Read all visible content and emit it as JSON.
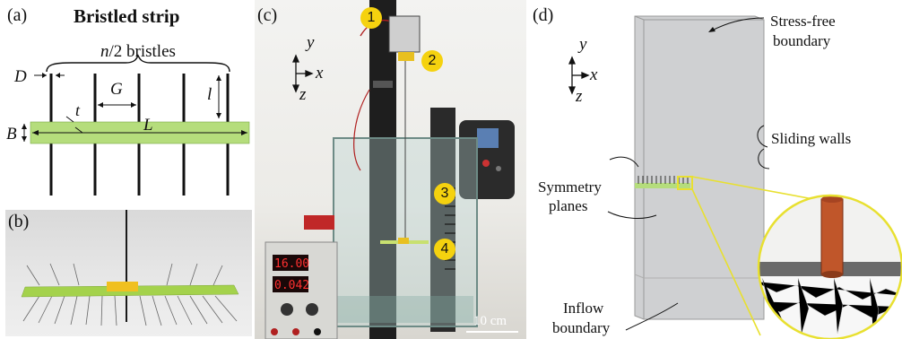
{
  "panel_a": {
    "label": "(a)",
    "title": "Bristled strip",
    "brace_label_n": "n",
    "brace_label_rest": "/2 bristles",
    "dim_D": "D",
    "dim_G": "G",
    "dim_l": "l",
    "dim_t": "t",
    "dim_B": "B",
    "dim_L": "L"
  },
  "panel_b": {
    "label": "(b)"
  },
  "panel_c": {
    "label": "(c)",
    "axis_y": "y",
    "axis_x": "x",
    "axis_z": "z",
    "badges": [
      "1",
      "2",
      "3",
      "4"
    ],
    "readout_voltage": "16.00",
    "readout_current": "0.042",
    "scale_bar": "10 cm"
  },
  "panel_d": {
    "label": "(d)",
    "axis_y": "y",
    "axis_x": "x",
    "axis_z": "z",
    "stress_free_1": "Stress-free",
    "stress_free_2": "boundary",
    "sliding_walls": "Sliding walls",
    "symmetry_1": "Symmetry",
    "symmetry_2": "planes",
    "inflow_1": "Inflow",
    "inflow_2": "boundary"
  },
  "colors": {
    "strip_green": "#b5dd7c",
    "badge_yellow": "#f5d20f",
    "zoom_yellow": "#e8e030"
  }
}
